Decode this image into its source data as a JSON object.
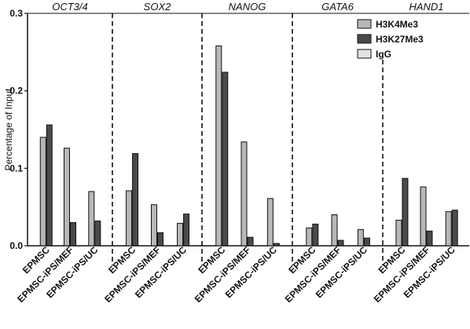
{
  "chart_data": {
    "type": "bar",
    "ylabel": "Percentage of Input",
    "ylim": [
      0,
      0.3
    ],
    "yticks": [
      "0.0",
      "0.1",
      "0.2",
      "0.3"
    ],
    "grid": false,
    "legend_position": "top-right",
    "groups": [
      {
        "gene": "OCT3/4",
        "categories": [
          "EPMSC",
          "EPMSC-iPS/MEF",
          "EPMSC-iPS/UC"
        ],
        "series": [
          {
            "name": "H3K4Me3",
            "values": [
              0.14,
              0.126,
              0.07
            ]
          },
          {
            "name": "H3K27Me3",
            "values": [
              0.156,
              0.03,
              0.032
            ]
          },
          {
            "name": "IgG",
            "values": [
              0,
              0,
              0
            ]
          }
        ]
      },
      {
        "gene": "SOX2",
        "categories": [
          "EPMSC",
          "EPMSC-iPS/MEF",
          "EPMSC-iPS/UC"
        ],
        "series": [
          {
            "name": "H3K4Me3",
            "values": [
              0.071,
              0.053,
              0.029
            ]
          },
          {
            "name": "H3K27Me3",
            "values": [
              0.119,
              0.017,
              0.041
            ]
          },
          {
            "name": "IgG",
            "values": [
              0,
              0,
              0
            ]
          }
        ]
      },
      {
        "gene": "NANOG",
        "categories": [
          "EPMSC",
          "EPMSC-iPS/MEF",
          "EPMSC-iPS/UC"
        ],
        "series": [
          {
            "name": "H3K4Me3",
            "values": [
              0.258,
              0.134,
              0.061
            ]
          },
          {
            "name": "H3K27Me3",
            "values": [
              0.224,
              0.011,
              0.003
            ]
          },
          {
            "name": "IgG",
            "values": [
              0,
              0,
              0
            ]
          }
        ]
      },
      {
        "gene": "GATA6",
        "categories": [
          "EPMSC",
          "EPMSC-iPS/MEF",
          "EPMSC-iPS/UC"
        ],
        "series": [
          {
            "name": "H3K4Me3",
            "values": [
              0.023,
              0.04,
              0.021
            ]
          },
          {
            "name": "H3K27Me3",
            "values": [
              0.028,
              0.007,
              0.01
            ]
          },
          {
            "name": "IgG",
            "values": [
              0,
              0,
              0
            ]
          }
        ]
      },
      {
        "gene": "HAND1",
        "categories": [
          "EPMSC",
          "EPMSC-iPS/MEF",
          "EPMSC-iPS/UC"
        ],
        "series": [
          {
            "name": "H3K4Me3",
            "values": [
              0.033,
              0.076,
              0.044
            ]
          },
          {
            "name": "H3K27Me3",
            "values": [
              0.087,
              0.019,
              0.046
            ]
          },
          {
            "name": "IgG",
            "values": [
              0,
              0,
              0
            ]
          }
        ]
      }
    ]
  },
  "legend": [
    {
      "name": "H3K4Me3",
      "color": "#b8b8b8"
    },
    {
      "name": "H3K27Me3",
      "color": "#4a4a4a"
    },
    {
      "name": "IgG",
      "color": "#e2e2e2"
    }
  ],
  "colors": {
    "H3K4Me3": "#b8b8b8",
    "H3K27Me3": "#4a4a4a",
    "IgG": "#e2e2e2",
    "bar_stroke": "#111111"
  }
}
